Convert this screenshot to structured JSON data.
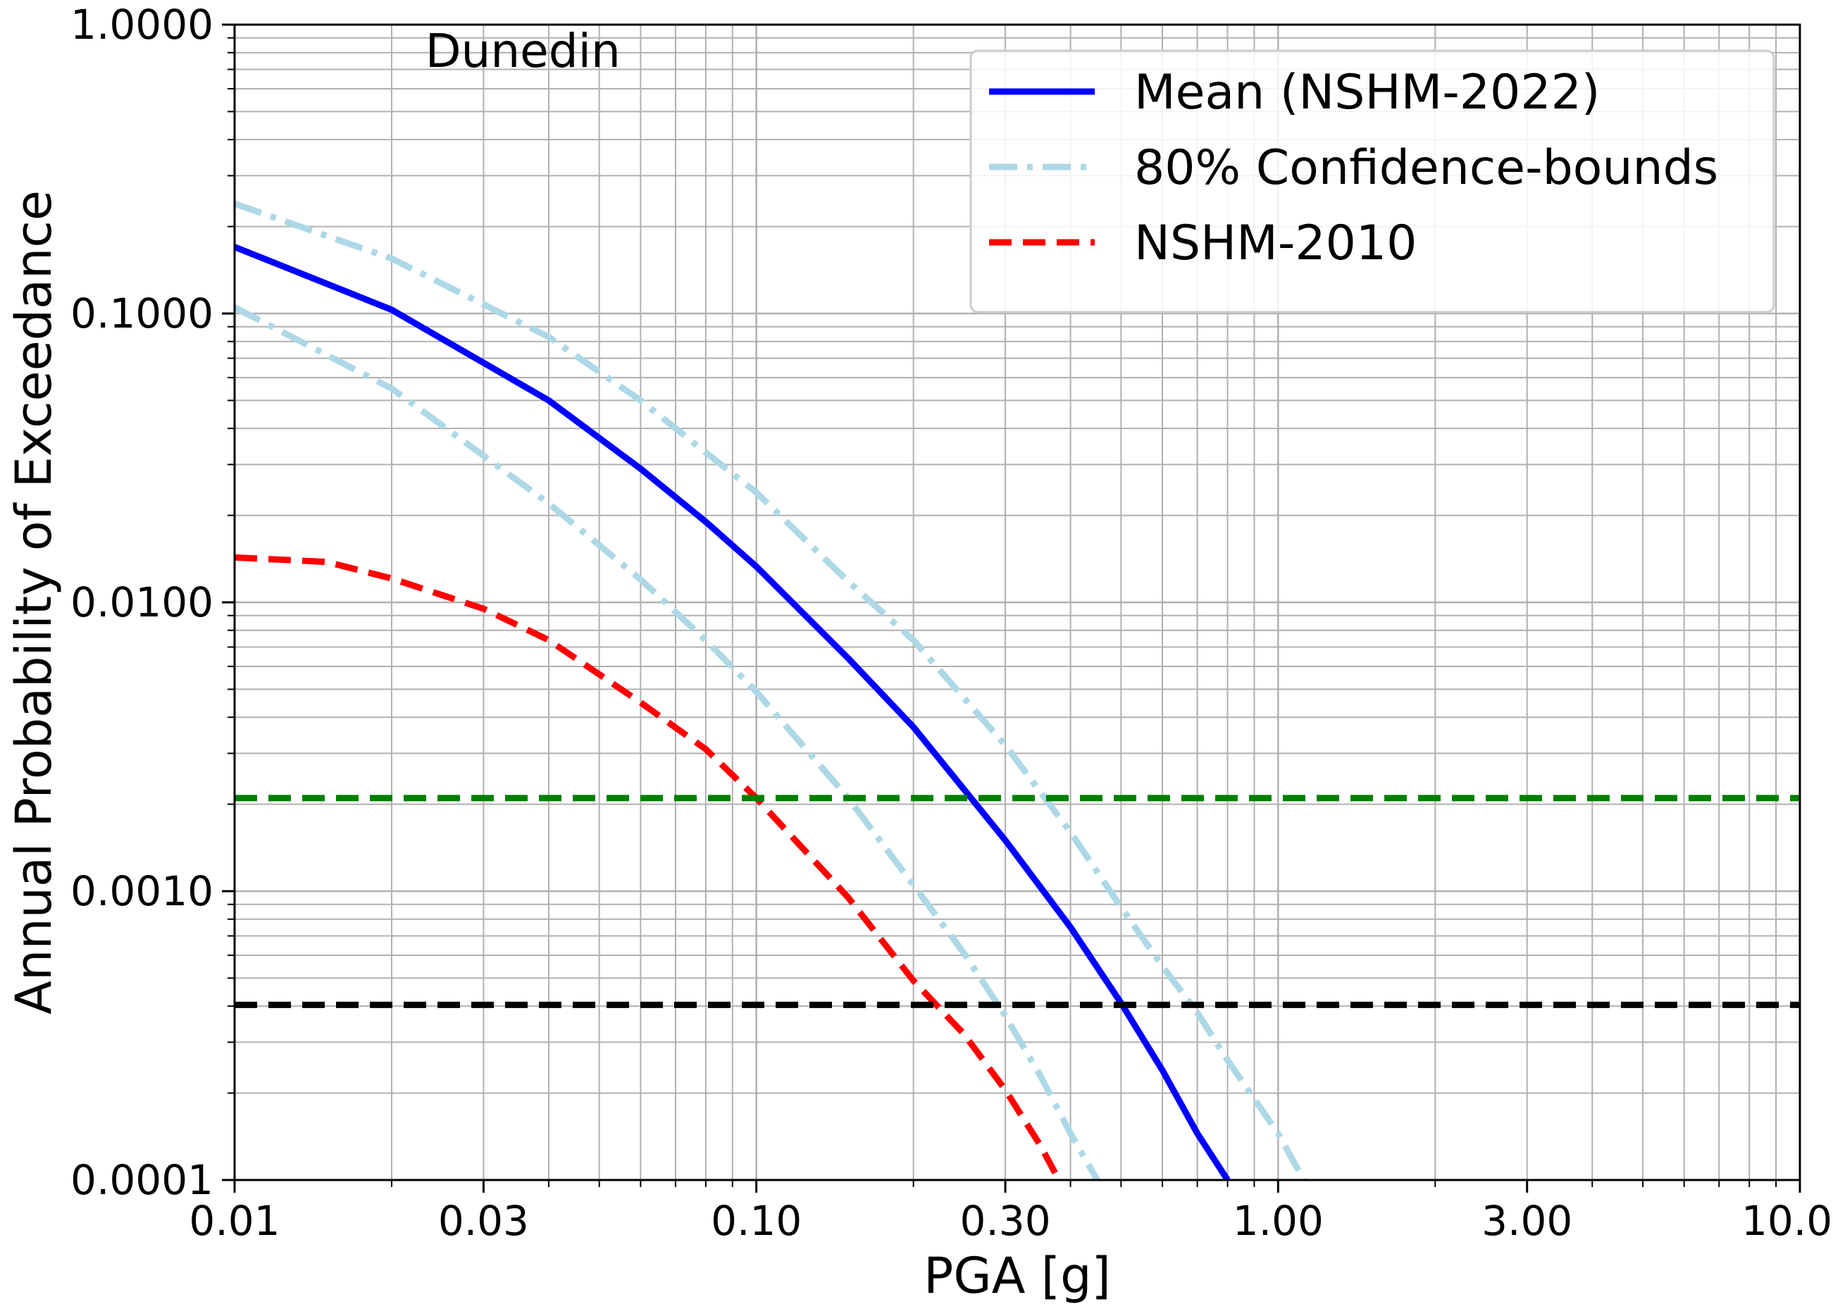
{
  "chart_data": {
    "type": "line",
    "xlabel": "PGA [g]",
    "ylabel": "Annual Probability of Exceedance",
    "annotation": "Dunedin",
    "x_scale": "log",
    "y_scale": "log",
    "xlim": [
      0.01,
      10.0
    ],
    "ylim": [
      0.0001,
      1.0
    ],
    "grid": true,
    "legend_position": "top-right",
    "x_ticks": [
      0.01,
      0.03,
      0.1,
      0.3,
      1.0,
      3.0,
      10.0
    ],
    "x_tick_labels": [
      "0.01",
      "0.03",
      "0.10",
      "0.30",
      "1.00",
      "3.00",
      "10.00"
    ],
    "y_ticks": [
      0.0001,
      0.001,
      0.01,
      0.1,
      1.0
    ],
    "y_tick_labels": [
      "0.0001",
      "0.0010",
      "0.0100",
      "0.1000",
      "1.0000"
    ],
    "series": [
      {
        "name": "Mean (NSHM-2022)",
        "color": "#0000ff",
        "style": "solid",
        "in_legend": true,
        "x": [
          0.01,
          0.02,
          0.04,
          0.06,
          0.08,
          0.1,
          0.15,
          0.2,
          0.3,
          0.4,
          0.5,
          0.6,
          0.7,
          0.8
        ],
        "y": [
          0.17,
          0.103,
          0.05,
          0.029,
          0.019,
          0.0133,
          0.0064,
          0.0037,
          0.0015,
          0.00075,
          0.00041,
          0.00024,
          0.000145,
          0.0001
        ]
      },
      {
        "name": "80% Confidence-bounds",
        "color": "#add8e6",
        "style": "dashdot",
        "in_legend": true,
        "x": [
          0.01,
          0.02,
          0.04,
          0.06,
          0.08,
          0.1,
          0.15,
          0.2,
          0.3,
          0.4,
          0.5,
          0.6,
          0.7,
          0.8,
          1.0,
          1.12
        ],
        "y": [
          0.24,
          0.155,
          0.083,
          0.05,
          0.033,
          0.024,
          0.0118,
          0.0074,
          0.0032,
          0.0016,
          0.00088,
          0.00055,
          0.00038,
          0.00026,
          0.000145,
          0.0001
        ]
      },
      {
        "name": "",
        "color": "#add8e6",
        "style": "dashdot",
        "in_legend": false,
        "x": [
          0.01,
          0.02,
          0.04,
          0.06,
          0.08,
          0.1,
          0.15,
          0.2,
          0.25,
          0.3,
          0.35,
          0.4,
          0.45
        ],
        "y": [
          0.105,
          0.055,
          0.022,
          0.012,
          0.0074,
          0.0049,
          0.0021,
          0.00105,
          0.00061,
          0.00037,
          0.00023,
          0.000145,
          0.0001
        ]
      },
      {
        "name": "NSHM-2010",
        "color": "#ff0000",
        "style": "dashed",
        "in_legend": true,
        "x": [
          0.01,
          0.015,
          0.02,
          0.03,
          0.04,
          0.06,
          0.08,
          0.1,
          0.15,
          0.2,
          0.25,
          0.3,
          0.35,
          0.38
        ],
        "y": [
          0.0143,
          0.0138,
          0.0121,
          0.0095,
          0.0074,
          0.0045,
          0.0031,
          0.0021,
          0.00095,
          0.00049,
          0.00032,
          0.000205,
          0.000132,
          0.0001
        ]
      },
      {
        "name": "",
        "color": "#008000",
        "style": "dashed",
        "in_legend": false,
        "x": [
          0.01,
          10.0
        ],
        "y": [
          0.0021,
          0.0021
        ]
      },
      {
        "name": "",
        "color": "#000000",
        "style": "dashed",
        "in_legend": false,
        "x": [
          0.01,
          10.0
        ],
        "y": [
          0.000404,
          0.000404
        ]
      }
    ]
  }
}
